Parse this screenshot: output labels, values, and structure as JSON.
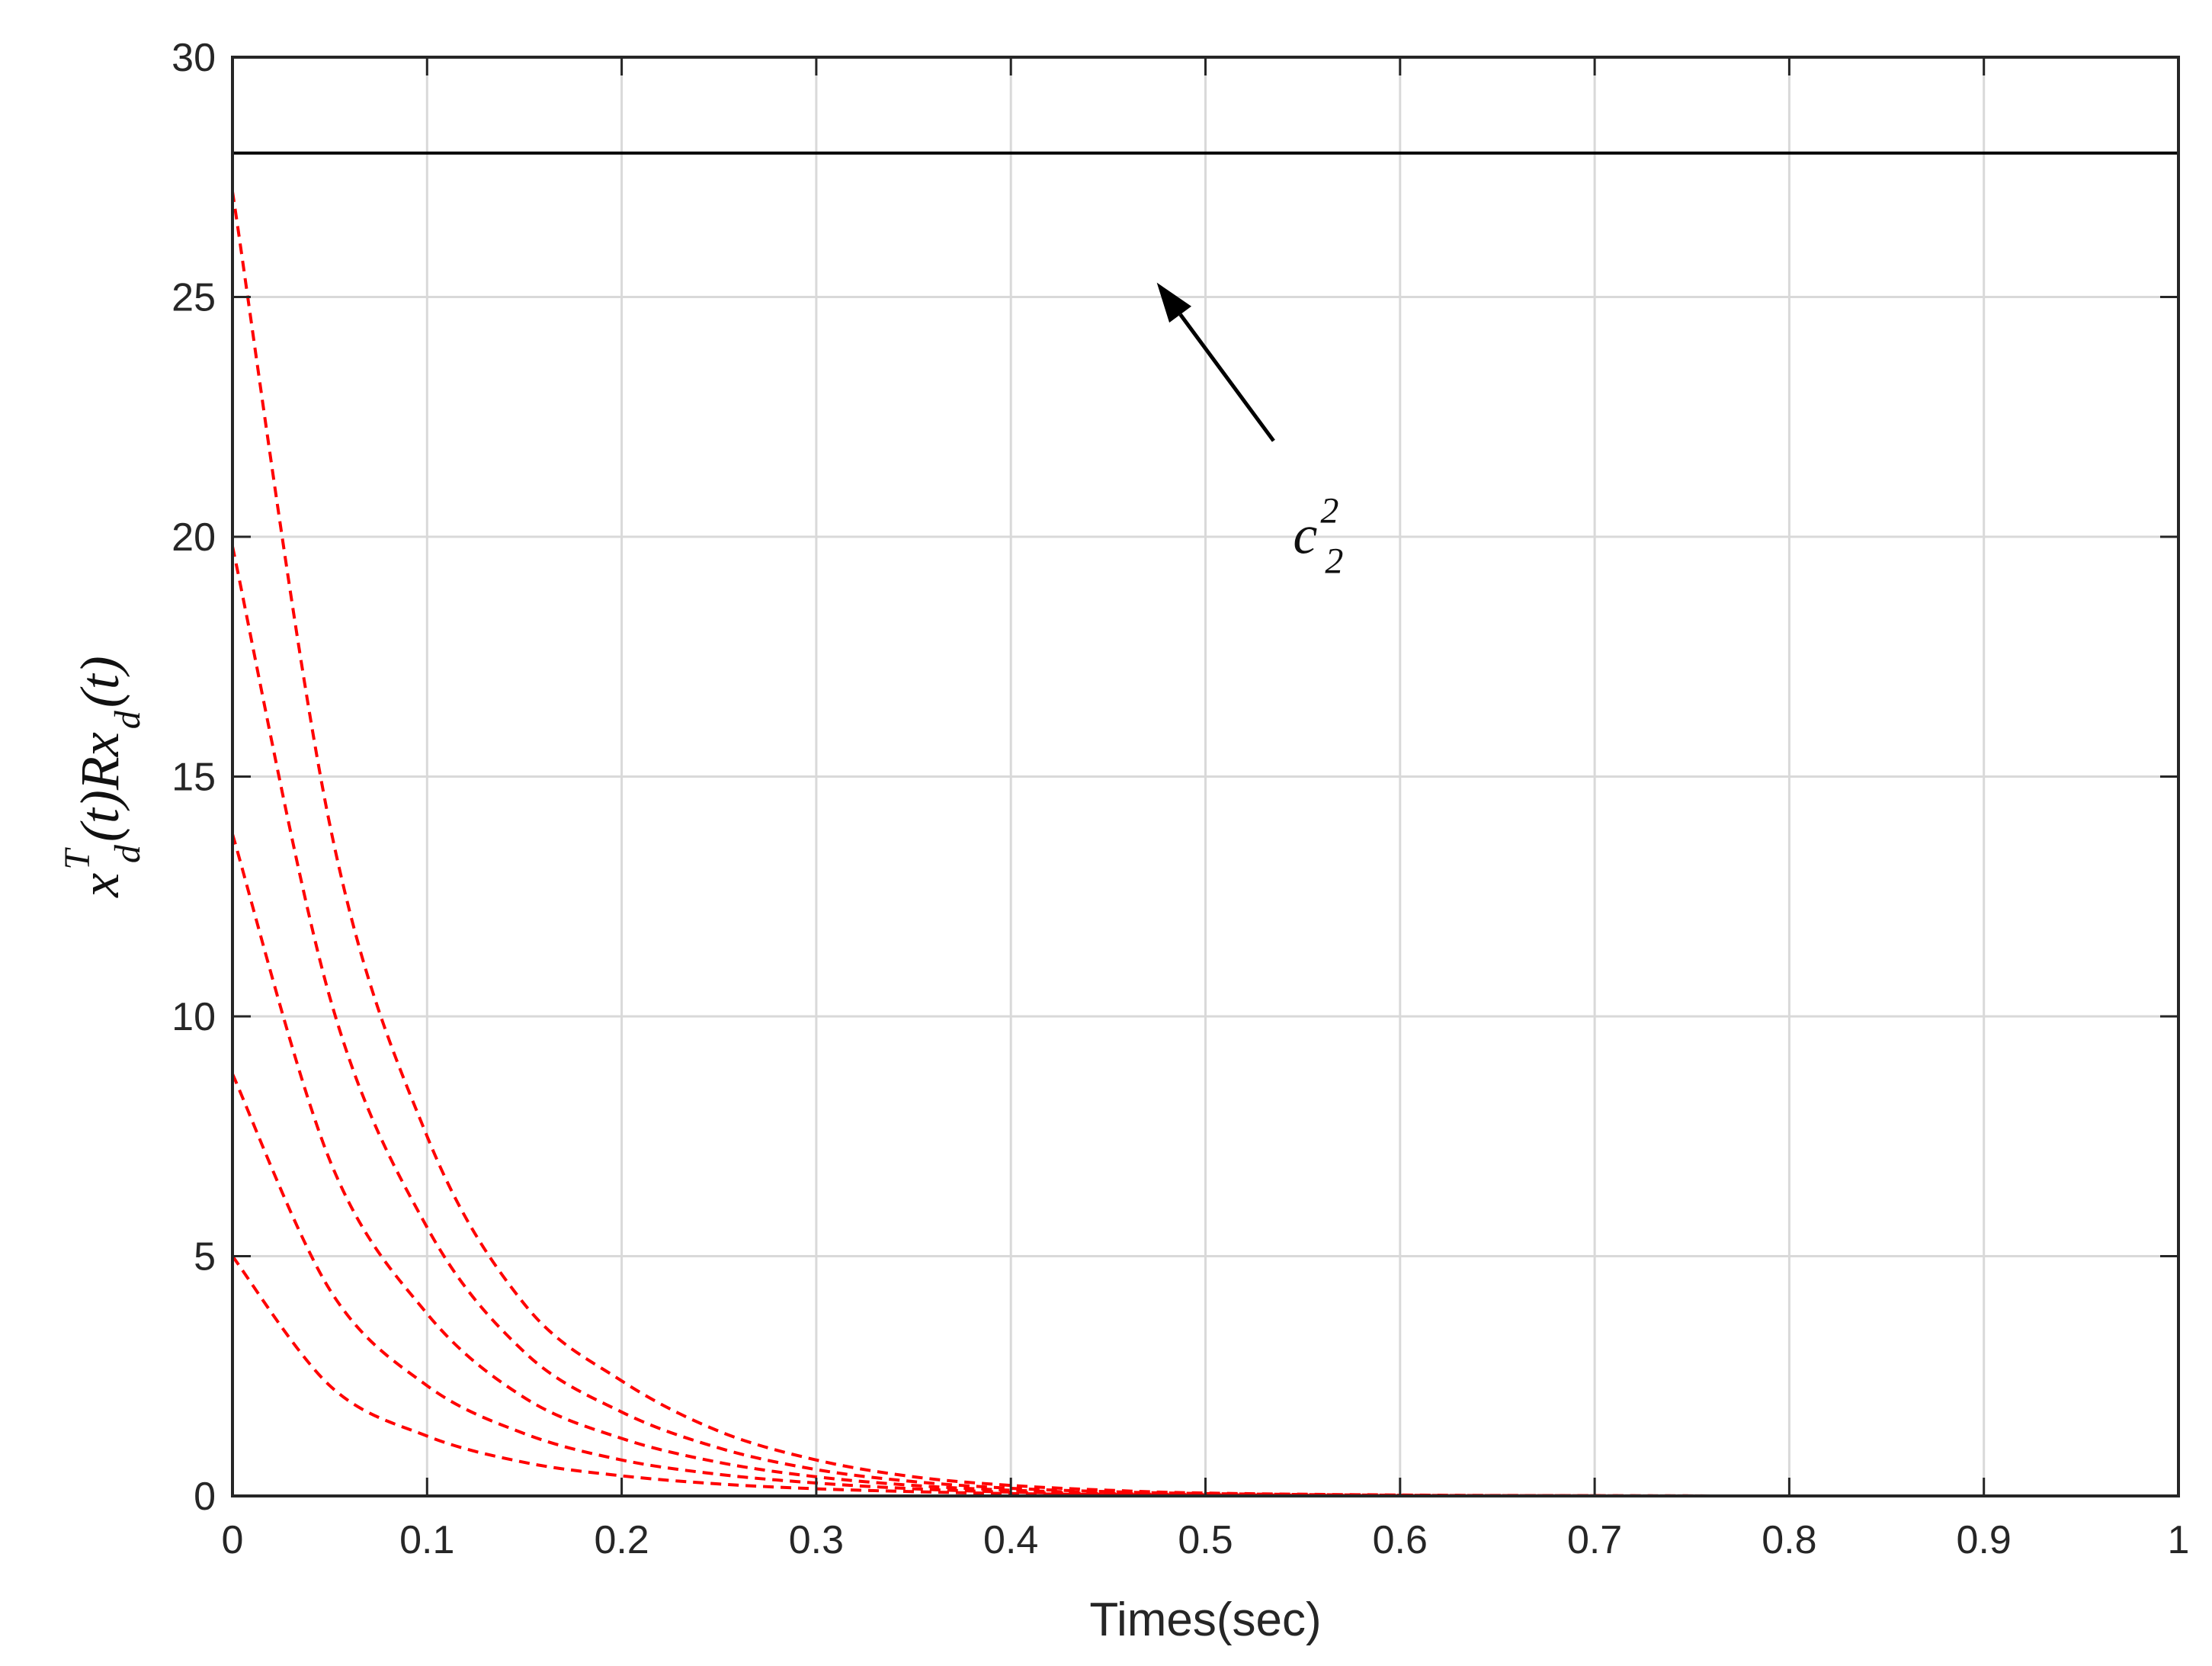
{
  "chart_data": {
    "type": "line",
    "xlabel": "Times(sec)",
    "ylabel": {
      "main1": "x",
      "sup1": "T",
      "sub1": "d",
      "mid": "(t)Rx",
      "sub2": "d",
      "end": "(t)"
    },
    "xlim": [
      0,
      1
    ],
    "ylim": [
      0,
      30
    ],
    "x_ticks": [
      "0",
      "0.1",
      "0.2",
      "0.3",
      "0.4",
      "0.5",
      "0.6",
      "0.7",
      "0.8",
      "0.9",
      "1"
    ],
    "y_ticks": [
      "0",
      "5",
      "10",
      "15",
      "20",
      "25",
      "30"
    ],
    "grid": true,
    "colors": {
      "bound": "#000000",
      "trajectories": "#ff0000",
      "grid": "#d9d9d9",
      "axes": "#262626"
    },
    "bound_line": {
      "value": 28,
      "style": "solid",
      "color": "#000000"
    },
    "annotation": {
      "base": "c",
      "sup": "2",
      "sub": "2",
      "arrow_target": [
        0.475,
        25.3
      ],
      "arrow_tail": [
        0.535,
        22.0
      ],
      "text_anchor": [
        0.545,
        19.5
      ]
    },
    "series": [
      {
        "style": "dashed",
        "color": "#ff0000",
        "points": [
          [
            0,
            27.2
          ],
          [
            0.05,
            14.0
          ],
          [
            0.1,
            7.5
          ],
          [
            0.15,
            4.0
          ],
          [
            0.2,
            2.4
          ],
          [
            0.25,
            1.35
          ],
          [
            0.3,
            0.75
          ],
          [
            0.35,
            0.4
          ],
          [
            0.4,
            0.22
          ],
          [
            0.45,
            0.12
          ],
          [
            0.5,
            0.06
          ],
          [
            0.6,
            0.02
          ],
          [
            0.7,
            0.005
          ],
          [
            0.8,
            0.0
          ],
          [
            1.0,
            0.0
          ]
        ]
      },
      {
        "style": "dashed",
        "color": "#ff0000",
        "points": [
          [
            0,
            19.8
          ],
          [
            0.05,
            10.4
          ],
          [
            0.1,
            5.6
          ],
          [
            0.15,
            3.0
          ],
          [
            0.2,
            1.75
          ],
          [
            0.25,
            1.0
          ],
          [
            0.3,
            0.55
          ],
          [
            0.35,
            0.3
          ],
          [
            0.4,
            0.16
          ],
          [
            0.45,
            0.09
          ],
          [
            0.5,
            0.05
          ],
          [
            0.6,
            0.015
          ],
          [
            0.7,
            0.004
          ],
          [
            0.8,
            0.0
          ],
          [
            1.0,
            0.0
          ]
        ]
      },
      {
        "style": "dashed",
        "color": "#ff0000",
        "points": [
          [
            0,
            13.8
          ],
          [
            0.05,
            7.0
          ],
          [
            0.1,
            3.8
          ],
          [
            0.15,
            2.05
          ],
          [
            0.2,
            1.2
          ],
          [
            0.25,
            0.7
          ],
          [
            0.3,
            0.4
          ],
          [
            0.35,
            0.22
          ],
          [
            0.4,
            0.12
          ],
          [
            0.45,
            0.07
          ],
          [
            0.5,
            0.04
          ],
          [
            0.6,
            0.01
          ],
          [
            0.7,
            0.003
          ],
          [
            0.8,
            0.0
          ],
          [
            1.0,
            0.0
          ]
        ]
      },
      {
        "style": "dashed",
        "color": "#ff0000",
        "points": [
          [
            0,
            8.8
          ],
          [
            0.05,
            4.3
          ],
          [
            0.1,
            2.3
          ],
          [
            0.15,
            1.3
          ],
          [
            0.2,
            0.75
          ],
          [
            0.25,
            0.45
          ],
          [
            0.3,
            0.27
          ],
          [
            0.35,
            0.15
          ],
          [
            0.4,
            0.08
          ],
          [
            0.45,
            0.05
          ],
          [
            0.5,
            0.03
          ],
          [
            0.6,
            0.008
          ],
          [
            0.7,
            0.002
          ],
          [
            0.8,
            0.0
          ],
          [
            1.0,
            0.0
          ]
        ]
      },
      {
        "style": "dashed",
        "color": "#ff0000",
        "points": [
          [
            0,
            5.0
          ],
          [
            0.05,
            2.3
          ],
          [
            0.1,
            1.25
          ],
          [
            0.15,
            0.7
          ],
          [
            0.2,
            0.42
          ],
          [
            0.25,
            0.25
          ],
          [
            0.3,
            0.15
          ],
          [
            0.35,
            0.09
          ],
          [
            0.4,
            0.05
          ],
          [
            0.45,
            0.03
          ],
          [
            0.5,
            0.02
          ],
          [
            0.6,
            0.005
          ],
          [
            0.7,
            0.001
          ],
          [
            0.8,
            0.0
          ],
          [
            1.0,
            0.0
          ]
        ]
      }
    ]
  }
}
